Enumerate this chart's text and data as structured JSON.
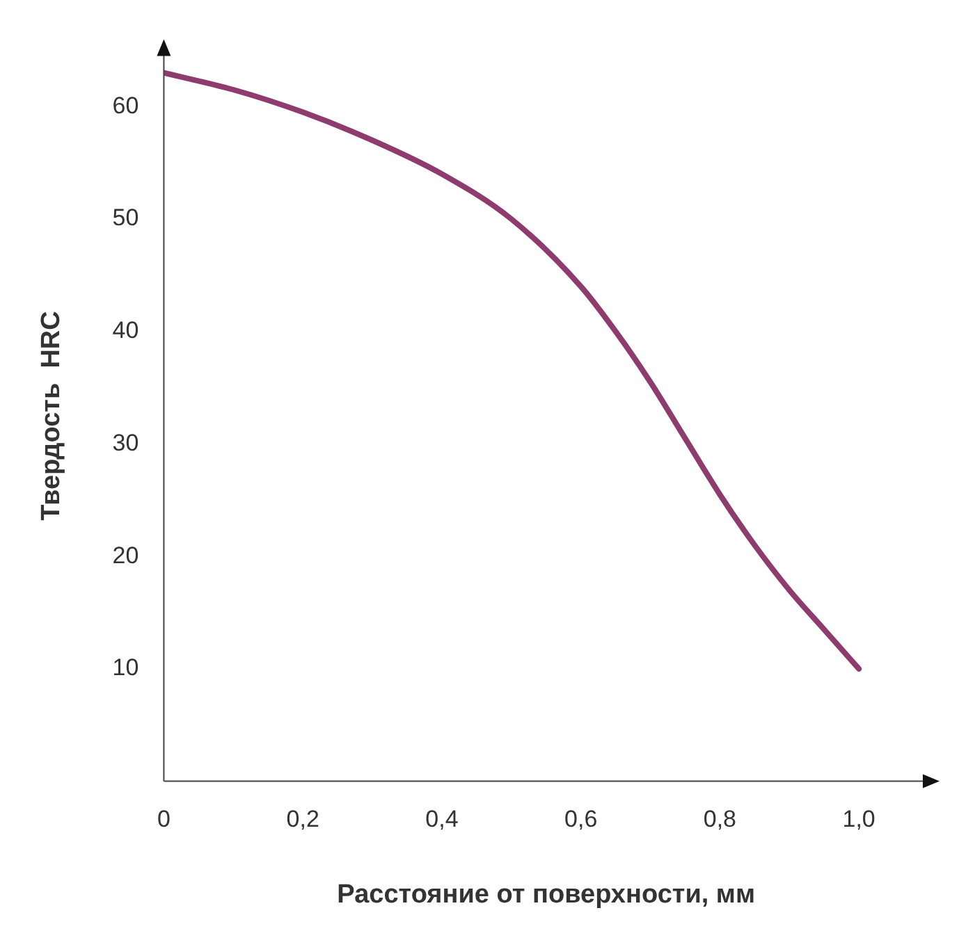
{
  "chart_data": {
    "type": "line",
    "xlabel": "Расстояние от поверхности, мм",
    "ylabel": "Твердость  HRC",
    "x": [
      0,
      0.1,
      0.2,
      0.3,
      0.4,
      0.5,
      0.6,
      0.65,
      0.7,
      0.75,
      0.8,
      0.85,
      0.9,
      0.95,
      1.0
    ],
    "series": [
      {
        "color": "#8e3b6e",
        "values": [
          63,
          61.5,
          59.5,
          57,
          54,
          50,
          44,
          40,
          35.5,
          30.5,
          25.5,
          21,
          17,
          13.5,
          10
        ]
      }
    ],
    "xlim": [
      0,
      1.1
    ],
    "ylim": [
      0,
      65
    ],
    "xticks": [
      {
        "value": 0,
        "label": "0"
      },
      {
        "value": 0.2,
        "label": "0,2"
      },
      {
        "value": 0.4,
        "label": "0,4"
      },
      {
        "value": 0.6,
        "label": "0,6"
      },
      {
        "value": 0.8,
        "label": "0,8"
      },
      {
        "value": 1.0,
        "label": "1,0"
      }
    ],
    "yticks": [
      10,
      20,
      30,
      40,
      50,
      60
    ],
    "grid": false,
    "legend": false,
    "marker": "none",
    "line_style": "solid"
  }
}
